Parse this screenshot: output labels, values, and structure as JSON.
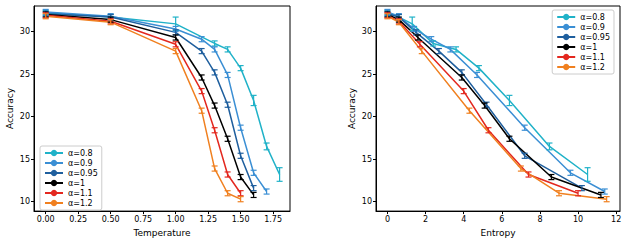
{
  "chart_data": [
    {
      "type": "line",
      "x_label": "Temperature",
      "y_label": "Accuracy",
      "xlim": [
        -0.09,
        1.88
      ],
      "xticks": [
        {
          "value": 0,
          "label": "0.00"
        },
        {
          "value": 0.25,
          "label": "0.25"
        },
        {
          "value": 0.5,
          "label": "0.50"
        },
        {
          "value": 0.75,
          "label": "0.75"
        },
        {
          "value": 1,
          "label": "1.00"
        },
        {
          "value": 1.25,
          "label": "1.25"
        },
        {
          "value": 1.5,
          "label": "1.50"
        },
        {
          "value": 1.75,
          "label": "1.75"
        }
      ],
      "ylim": [
        8.9,
        33.0
      ],
      "yticks": [
        10,
        15,
        20,
        25,
        30
      ],
      "grid": false,
      "legend": "lower left",
      "series": [
        {
          "name": "α=0.8",
          "color": "#20b2c8",
          "x": [
            0,
            0.5,
            1.0,
            1.3,
            1.4,
            1.5,
            1.6,
            1.7,
            1.8
          ],
          "values": [
            32.2,
            31.7,
            30.9,
            28.6,
            27.9,
            25.7,
            21.9,
            16.5,
            13.2
          ],
          "errors": [
            0.3,
            0.3,
            0.8,
            0.3,
            0.3,
            0.3,
            0.6,
            0.4,
            0.8
          ]
        },
        {
          "name": "α=0.9",
          "color": "#3b8fd4",
          "x": [
            0,
            0.5,
            1.0,
            1.2,
            1.3,
            1.4,
            1.5,
            1.6,
            1.7
          ],
          "values": [
            32.3,
            31.8,
            30.3,
            29.1,
            27.9,
            24.9,
            18.7,
            13.4,
            11.2
          ],
          "errors": [
            0.3,
            0.3,
            0.3,
            0.3,
            0.3,
            0.3,
            0.3,
            0.3,
            0.3
          ]
        },
        {
          "name": "α=0.95",
          "color": "#1f5f9e",
          "x": [
            0,
            0.5,
            1.0,
            1.2,
            1.3,
            1.4,
            1.5,
            1.6
          ],
          "values": [
            32.1,
            31.7,
            29.9,
            27.7,
            25.2,
            21.4,
            15.4,
            11.6
          ],
          "errors": [
            0.3,
            0.3,
            0.3,
            0.3,
            0.3,
            0.3,
            0.3,
            0.3
          ]
        },
        {
          "name": "α=1",
          "color": "#000000",
          "x": [
            0,
            0.5,
            1.0,
            1.2,
            1.3,
            1.4,
            1.5,
            1.6
          ],
          "values": [
            32.0,
            31.4,
            29.3,
            24.6,
            21.3,
            17.4,
            12.9,
            10.8
          ],
          "errors": [
            0.3,
            0.3,
            0.3,
            0.3,
            0.3,
            0.3,
            0.3,
            0.3
          ]
        },
        {
          "name": "α=1.1",
          "color": "#e3281f",
          "x": [
            0,
            0.5,
            1.0,
            1.2,
            1.3,
            1.4,
            1.5
          ],
          "values": [
            31.9,
            31.2,
            28.5,
            23.0,
            18.4,
            13.2,
            11.0
          ],
          "errors": [
            0.3,
            0.3,
            0.3,
            0.3,
            0.3,
            0.3,
            0.3
          ]
        },
        {
          "name": "α=1.2",
          "color": "#f08020",
          "x": [
            0,
            0.5,
            1.0,
            1.2,
            1.3,
            1.4,
            1.5
          ],
          "values": [
            31.8,
            31.1,
            27.7,
            20.7,
            13.9,
            11.0,
            10.3
          ],
          "errors": [
            0.3,
            0.3,
            0.3,
            0.3,
            0.3,
            0.3,
            0.3
          ]
        }
      ]
    },
    {
      "type": "line",
      "x_label": "Entropy",
      "y_label": "Accuracy",
      "xlim": [
        -0.6,
        12.2
      ],
      "xticks": [
        0,
        2,
        4,
        6,
        8,
        10,
        12
      ],
      "ylim": [
        8.9,
        33.0
      ],
      "yticks": [
        10,
        15,
        20,
        25,
        30
      ],
      "grid": false,
      "legend": "upper right",
      "series": [
        {
          "name": "α=0.8",
          "color": "#20b2c8",
          "x": [
            0,
            0.6,
            1.3,
            2.4,
            3.6,
            4.8,
            6.4,
            8.5,
            10.5
          ],
          "values": [
            32.2,
            31.7,
            30.9,
            28.6,
            27.9,
            25.7,
            21.9,
            16.5,
            13.2
          ],
          "errors": [
            0.3,
            0.3,
            0.8,
            0.3,
            0.3,
            0.3,
            0.6,
            0.4,
            0.8
          ]
        },
        {
          "name": "α=0.9",
          "color": "#3b8fd4",
          "x": [
            0,
            0.6,
            1.4,
            2.3,
            3.3,
            4.7,
            7.2,
            9.6,
            11.4
          ],
          "values": [
            32.3,
            31.8,
            30.3,
            29.1,
            27.9,
            24.9,
            18.7,
            13.4,
            11.2
          ],
          "errors": [
            0.3,
            0.3,
            0.3,
            0.3,
            0.3,
            0.3,
            0.3,
            0.3,
            0.3
          ]
        },
        {
          "name": "α=0.95",
          "color": "#1f5f9e",
          "x": [
            0,
            0.6,
            1.5,
            2.7,
            3.9,
            5.2,
            7.2,
            10.2
          ],
          "values": [
            32.1,
            31.7,
            29.9,
            27.7,
            25.2,
            21.4,
            15.4,
            11.6
          ],
          "errors": [
            0.3,
            0.3,
            0.3,
            0.3,
            0.3,
            0.3,
            0.3,
            0.3
          ]
        },
        {
          "name": "α=1",
          "color": "#000000",
          "x": [
            0,
            0.6,
            1.6,
            3.9,
            5.1,
            6.4,
            8.6,
            11.2
          ],
          "values": [
            32.0,
            31.4,
            29.3,
            24.6,
            21.3,
            17.4,
            12.9,
            10.8
          ],
          "errors": [
            0.3,
            0.3,
            0.3,
            0.3,
            0.3,
            0.3,
            0.3,
            0.3
          ]
        },
        {
          "name": "α=1.1",
          "color": "#e3281f",
          "x": [
            0,
            0.6,
            1.7,
            4.0,
            5.3,
            7.4,
            10.0
          ],
          "values": [
            31.9,
            31.2,
            28.5,
            23.0,
            18.4,
            13.2,
            11.0
          ],
          "errors": [
            0.3,
            0.3,
            0.3,
            0.3,
            0.3,
            0.3,
            0.3
          ]
        },
        {
          "name": "α=1.2",
          "color": "#f08020",
          "x": [
            0,
            0.6,
            1.8,
            4.3,
            7.0,
            9.0,
            11.5
          ],
          "values": [
            31.8,
            31.1,
            27.7,
            20.7,
            13.9,
            11.0,
            10.3
          ],
          "errors": [
            0.3,
            0.3,
            0.3,
            0.3,
            0.3,
            0.3,
            0.3
          ]
        }
      ]
    }
  ]
}
